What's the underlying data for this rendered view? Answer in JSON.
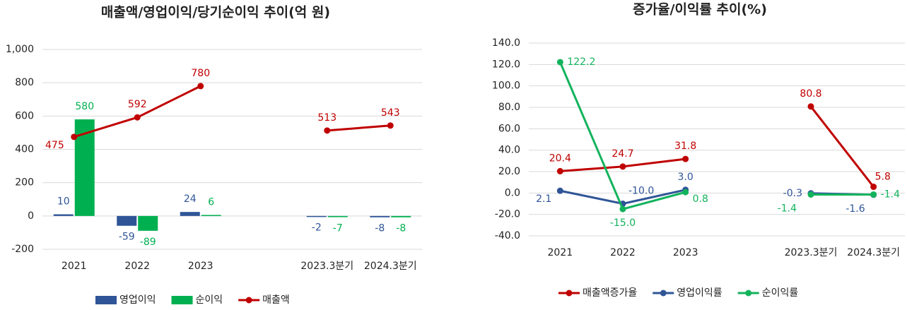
{
  "chart_data": [
    {
      "type": "bar",
      "title": "매출액/영업이익/당기순이익 추이(억 원)",
      "categories": [
        "2021",
        "2022",
        "2023",
        null,
        "2023.3분기",
        "2024.3분기"
      ],
      "series": [
        {
          "name": "영업이익",
          "type": "bar",
          "color": "#2f5597",
          "values": [
            10,
            -59,
            24,
            null,
            -2,
            -8
          ]
        },
        {
          "name": "순이익",
          "type": "bar",
          "color": "#00b050",
          "values": [
            580,
            -89,
            6,
            null,
            -7,
            -8
          ]
        },
        {
          "name": "매출액",
          "type": "line",
          "color": "#c00000",
          "values": [
            475,
            592,
            780,
            null,
            513,
            543
          ]
        }
      ],
      "ylim": [
        -200,
        1000
      ],
      "yticks": [
        -200,
        0,
        200,
        400,
        600,
        800,
        {
          "value": 1000,
          "label": "1,000"
        }
      ],
      "grid": true,
      "legend": "bottom"
    },
    {
      "type": "line",
      "title": "증가율/이익률 추이(%)",
      "categories": [
        "2021",
        "2022",
        "2023",
        null,
        "2023.3분기",
        "2024.3분기"
      ],
      "series": [
        {
          "name": "매출액증가율",
          "color": "#c00000",
          "values": [
            20.4,
            24.7,
            31.8,
            null,
            80.8,
            5.8
          ],
          "value_labels": [
            "20.4",
            "24.7",
            "31.8",
            null,
            "80.8",
            "5.8"
          ]
        },
        {
          "name": "영업이익률",
          "color": "#2f5597",
          "values": [
            2.1,
            -10.0,
            3.0,
            null,
            -0.3,
            -1.6
          ],
          "value_labels": [
            "2.1",
            "-10.0",
            "3.0",
            null,
            "-0.3",
            "-1.6"
          ]
        },
        {
          "name": "순이익률",
          "color": "#13b35c",
          "values": [
            122.2,
            -15.0,
            0.8,
            null,
            -1.4,
            -1.4
          ],
          "value_labels": [
            "122.2",
            "-15.0",
            "0.8",
            null,
            "-1.4",
            "-1.4"
          ]
        }
      ],
      "ylim": [
        -40,
        140
      ],
      "yticks": [
        {
          "value": -40,
          "label": "-40.0"
        },
        {
          "value": -20,
          "label": "-20.0"
        },
        {
          "value": 0,
          "label": "0.0"
        },
        {
          "value": 20,
          "label": "20.0"
        },
        {
          "value": 40,
          "label": "40.0"
        },
        {
          "value": 60,
          "label": "60.0"
        },
        {
          "value": 80,
          "label": "80.0"
        },
        {
          "value": 100,
          "label": "100.0"
        },
        {
          "value": 120,
          "label": "120.0"
        },
        {
          "value": 140,
          "label": "140.0"
        }
      ],
      "grid": true,
      "legend": "bottom"
    }
  ]
}
